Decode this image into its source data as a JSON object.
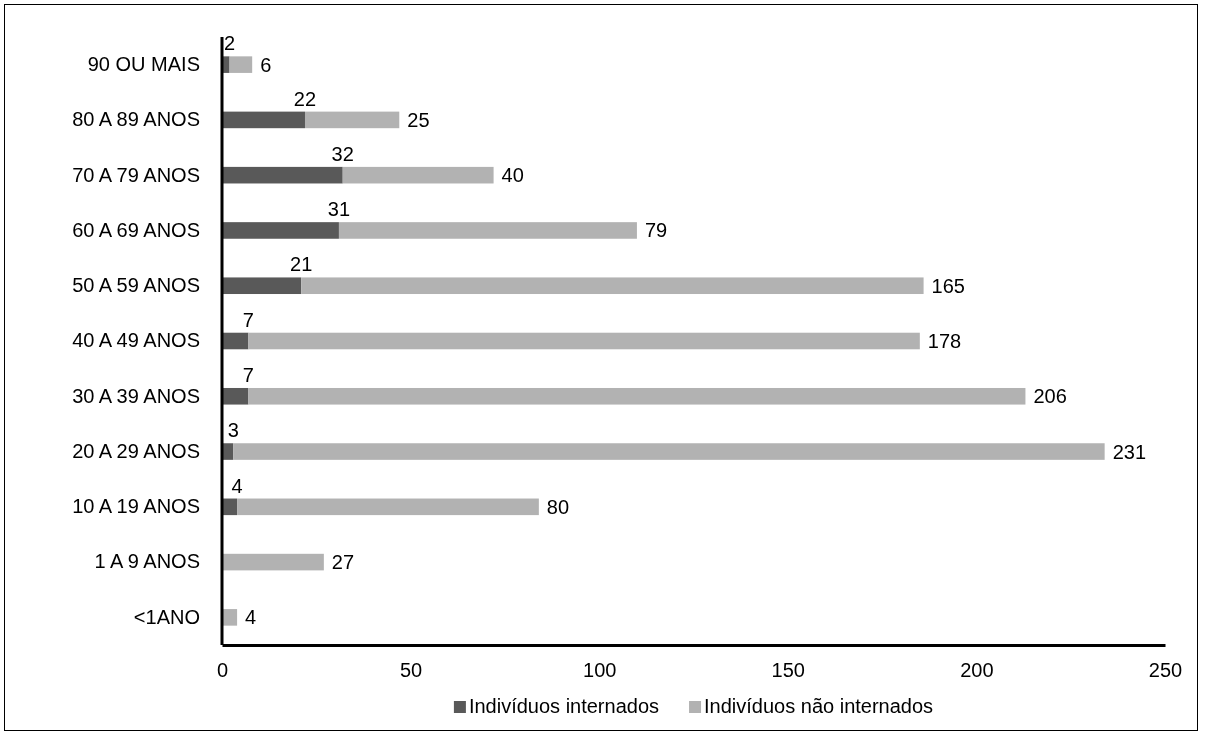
{
  "chart_data": {
    "type": "bar",
    "orientation": "horizontal",
    "stacked": true,
    "categories": [
      "90 OU MAIS",
      "80 A 89 ANOS",
      "70 A 79 ANOS",
      "60 A 69 ANOS",
      "50 A 59 ANOS",
      "40 A 49 ANOS",
      "30 A 39 ANOS",
      "20 A 29 ANOS",
      "10 A 19 ANOS",
      "1 A 9 ANOS",
      "<1ANO"
    ],
    "series": [
      {
        "name": "Indivíduos internados",
        "color": "#595959",
        "values": [
          2,
          22,
          32,
          31,
          21,
          7,
          7,
          3,
          4,
          null,
          null
        ]
      },
      {
        "name": "Indivíduos não internados",
        "color": "#b2b2b2",
        "values": [
          6,
          25,
          40,
          79,
          165,
          178,
          206,
          231,
          80,
          27,
          4
        ]
      }
    ],
    "xlim": [
      0,
      250
    ],
    "xticks": [
      0,
      50,
      100,
      150,
      200,
      250
    ],
    "data_labels": true,
    "legend": "bottom",
    "grid": false
  }
}
